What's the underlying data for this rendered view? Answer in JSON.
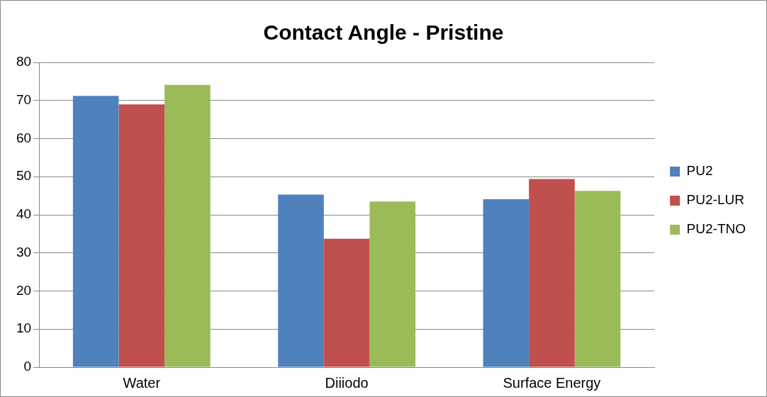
{
  "chart_data": {
    "type": "bar",
    "title": "Contact Angle - Pristine",
    "categories": [
      "Water",
      "Diiiodo",
      "Surface Energy"
    ],
    "series": [
      {
        "name": "PU2",
        "color": "#4f81bd",
        "values": [
          71.2,
          45.3,
          44.1
        ]
      },
      {
        "name": "PU2-LUR",
        "color": "#c0504d",
        "values": [
          69.0,
          33.7,
          49.4
        ]
      },
      {
        "name": "PU2-TNO",
        "color": "#9bbb59",
        "values": [
          74.1,
          43.5,
          46.3
        ]
      }
    ],
    "ylim": [
      0,
      80
    ],
    "yticks": [
      0,
      10,
      20,
      30,
      40,
      50,
      60,
      70,
      80
    ],
    "grid": "y",
    "legend": "right"
  }
}
